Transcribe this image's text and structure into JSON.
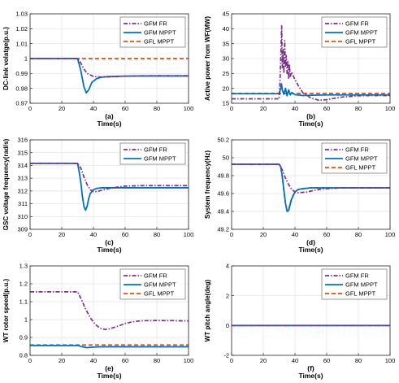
{
  "colors": {
    "gfm_fr": "#7E2F8E",
    "gfm_mppt": "#0072BD",
    "gfl_mppt": "#D95319",
    "grid": "#e3e3e3",
    "axis": "#262626"
  },
  "chart_data": [
    {
      "type": "line",
      "caption": "(a)",
      "xlabel": "Time(s)",
      "ylabel": "DC-link volatge(p.u.)",
      "xlim": [
        0,
        100
      ],
      "ylim": [
        0.97,
        1.03
      ],
      "xticks": [
        "0",
        "20",
        "40",
        "60",
        "80",
        "100"
      ],
      "yticks": [
        "0.97",
        "0.98",
        "0.99",
        "1",
        "1.01",
        "1.02",
        "1.03"
      ],
      "grid": true,
      "legend": "top-right",
      "series": [
        {
          "name": "GFM FR",
          "color": "#7E2F8E",
          "style": "dashdot",
          "x": [
            0,
            30,
            32,
            34,
            36,
            40,
            45,
            50,
            60,
            70,
            80,
            90,
            100
          ],
          "y": [
            1.0,
            1.0,
            0.997,
            0.993,
            0.99,
            0.988,
            0.9875,
            0.9877,
            0.9882,
            0.9884,
            0.9885,
            0.9885,
            0.9885
          ]
        },
        {
          "name": "GFM MPPT",
          "color": "#0072BD",
          "style": "solid",
          "x": [
            0,
            30,
            32,
            34,
            35.5,
            37,
            39,
            42,
            45,
            50,
            60,
            70,
            80,
            100
          ],
          "y": [
            1.0,
            1.0,
            0.992,
            0.981,
            0.977,
            0.979,
            0.984,
            0.9865,
            0.9875,
            0.988,
            0.9882,
            0.9883,
            0.9883,
            0.9883
          ]
        },
        {
          "name": "GFL MPPT",
          "color": "#D95319",
          "style": "dashed",
          "x": [
            0,
            100
          ],
          "y": [
            1.0,
            1.0
          ]
        }
      ]
    },
    {
      "type": "line",
      "caption": "(b)",
      "xlabel": "Time(s)",
      "ylabel": "Active power from WF(MW)",
      "xlim": [
        0,
        100
      ],
      "ylim": [
        15,
        45
      ],
      "xticks": [
        "0",
        "20",
        "40",
        "60",
        "80",
        "100"
      ],
      "yticks": [
        "15",
        "20",
        "25",
        "30",
        "35",
        "40",
        "45"
      ],
      "grid": true,
      "legend": "top-right",
      "series": [
        {
          "name": "GFM FR",
          "color": "#7E2F8E",
          "style": "dashdot",
          "x": [
            0,
            30,
            30.5,
            31,
            31.6,
            32,
            32.5,
            33,
            33.5,
            34,
            34.5,
            35,
            35.5,
            36,
            36.5,
            37,
            38,
            39,
            40,
            42,
            45,
            50,
            55,
            60,
            65,
            70,
            80,
            90,
            100
          ],
          "y": [
            16.5,
            16.5,
            22,
            30,
            41,
            27,
            33,
            25,
            36,
            27,
            31,
            25,
            29,
            23,
            28,
            24,
            25.5,
            24,
            23,
            21,
            18.5,
            16.8,
            16.0,
            16.2,
            16.7,
            17.1,
            17.5,
            17.6,
            17.6
          ]
        },
        {
          "name": "GFM MPPT",
          "color": "#0072BD",
          "style": "solid",
          "x": [
            0,
            30,
            31,
            31.5,
            32,
            33,
            34,
            35,
            36,
            37,
            38,
            40,
            45,
            50,
            60,
            70,
            100
          ],
          "y": [
            18.2,
            18.2,
            20,
            21.5,
            19.5,
            18,
            20,
            17.5,
            19.5,
            17.8,
            18.6,
            17.9,
            17.6,
            17.7,
            17.8,
            17.8,
            17.8
          ]
        },
        {
          "name": "GFL MPPT",
          "color": "#D95319",
          "style": "dashed",
          "x": [
            0,
            100
          ],
          "y": [
            18.3,
            18.3
          ]
        }
      ]
    },
    {
      "type": "line",
      "caption": "(c)",
      "xlabel": "Time(s)",
      "ylabel": "GSC voltage frequency(rad/s)",
      "xlim": [
        0,
        100
      ],
      "ylim": [
        309,
        316
      ],
      "xticks": [
        "0",
        "20",
        "40",
        "60",
        "80",
        "100"
      ],
      "yticks": [
        "309",
        "310",
        "311",
        "312",
        "313",
        "314",
        "315",
        "316"
      ],
      "grid": true,
      "legend": "top-right",
      "series": [
        {
          "name": "GFM FR",
          "color": "#7E2F8E",
          "style": "dashdot",
          "x": [
            0,
            30,
            32,
            34,
            36,
            38,
            40,
            42,
            45,
            50,
            55,
            60,
            70,
            80,
            90,
            100
          ],
          "y": [
            314.16,
            314.16,
            313.8,
            313.1,
            312.5,
            312.1,
            311.95,
            311.95,
            312.05,
            312.2,
            312.3,
            312.38,
            312.42,
            312.42,
            312.42,
            312.42
          ]
        },
        {
          "name": "GFM MPPT",
          "color": "#0072BD",
          "style": "solid",
          "x": [
            0,
            30,
            31,
            32,
            33,
            34,
            35,
            36,
            37,
            38,
            40,
            42,
            45,
            50,
            60,
            80,
            100
          ],
          "y": [
            314.16,
            314.16,
            313.5,
            312.7,
            311.6,
            310.8,
            310.5,
            310.8,
            311.4,
            311.8,
            312.1,
            312.2,
            312.25,
            312.25,
            312.25,
            312.25,
            312.25
          ]
        }
      ]
    },
    {
      "type": "line",
      "caption": "(d)",
      "xlabel": "Time(s)",
      "ylabel": "System frequency(Hz)",
      "xlim": [
        0,
        100
      ],
      "ylim": [
        49.2,
        50.3
      ],
      "xticks": [
        "0",
        "20",
        "40",
        "60",
        "80",
        "100"
      ],
      "yticks": [
        "49.2",
        "49.4",
        "49.6",
        "49.8",
        "50",
        "50.2"
      ],
      "grid": true,
      "legend": "top-right",
      "series": [
        {
          "name": "GFM FR",
          "color": "#7E2F8E",
          "style": "dashdot",
          "x": [
            0,
            30,
            32,
            34,
            36,
            38,
            40,
            42,
            45,
            48,
            50,
            55,
            60,
            70,
            80,
            100
          ],
          "y": [
            50.0,
            50.0,
            49.93,
            49.83,
            49.75,
            49.69,
            49.66,
            49.65,
            49.655,
            49.66,
            49.67,
            49.69,
            49.7,
            49.71,
            49.71,
            49.71
          ]
        },
        {
          "name": "GFM MPPT",
          "color": "#0072BD",
          "style": "solid",
          "x": [
            0,
            30,
            31,
            32,
            33,
            34,
            35,
            36,
            37,
            38,
            40,
            42,
            45,
            50,
            60,
            100
          ],
          "y": [
            50.0,
            50.0,
            49.97,
            49.85,
            49.68,
            49.52,
            49.42,
            49.43,
            49.51,
            49.58,
            49.66,
            49.69,
            49.7,
            49.71,
            49.71,
            49.71
          ]
        },
        {
          "name": "GFL MPPT",
          "color": "#D95319",
          "style": "dashed",
          "x": [
            0,
            30,
            31,
            32,
            33,
            34,
            35,
            36,
            37,
            38,
            40,
            42,
            45,
            50,
            60,
            100
          ],
          "y": [
            50.0,
            50.0,
            49.97,
            49.84,
            49.67,
            49.52,
            49.43,
            49.44,
            49.52,
            49.59,
            49.66,
            49.69,
            49.7,
            49.71,
            49.71,
            49.71
          ]
        }
      ]
    },
    {
      "type": "line",
      "caption": "(e)",
      "xlabel": "Time(s)",
      "ylabel": "WT rotor speed(p.u.)",
      "xlim": [
        0,
        100
      ],
      "ylim": [
        0.8,
        1.3
      ],
      "xticks": [
        "0",
        "20",
        "40",
        "60",
        "80",
        "100"
      ],
      "yticks": [
        "0.8",
        "0.9",
        "1",
        "1.1",
        "1.2",
        "1.3"
      ],
      "grid": true,
      "legend": "top-right",
      "series": [
        {
          "name": "GFM FR",
          "color": "#7E2F8E",
          "style": "dashdot",
          "x": [
            0,
            30,
            32,
            35,
            38,
            41,
            44,
            47,
            50,
            55,
            60,
            65,
            70,
            80,
            90,
            100
          ],
          "y": [
            1.155,
            1.155,
            1.12,
            1.06,
            1.01,
            0.975,
            0.952,
            0.945,
            0.948,
            0.962,
            0.978,
            0.988,
            0.993,
            0.995,
            0.994,
            0.992
          ]
        },
        {
          "name": "GFM MPPT",
          "color": "#0072BD",
          "style": "solid",
          "x": [
            0,
            30,
            33,
            36,
            40,
            45,
            50,
            100
          ],
          "y": [
            0.855,
            0.855,
            0.848,
            0.843,
            0.846,
            0.848,
            0.848,
            0.848
          ]
        },
        {
          "name": "GFL MPPT",
          "color": "#D95319",
          "style": "dashed",
          "x": [
            0,
            100
          ],
          "y": [
            0.858,
            0.858
          ]
        }
      ]
    },
    {
      "type": "line",
      "caption": "(f)",
      "xlabel": "Time(s)",
      "ylabel": "WT pitch angle(deg)",
      "xlim": [
        0,
        100
      ],
      "ylim": [
        -2,
        4
      ],
      "xticks": [
        "0",
        "20",
        "40",
        "60",
        "80",
        "100"
      ],
      "yticks": [
        "-2",
        "0",
        "2",
        "4"
      ],
      "grid": true,
      "legend": "top-right",
      "series": [
        {
          "name": "GFM FR",
          "color": "#7E2F8E",
          "style": "dashdot",
          "x": [
            0,
            100
          ],
          "y": [
            0,
            0
          ]
        },
        {
          "name": "GFM MPPT",
          "color": "#0072BD",
          "style": "solid",
          "x": [
            0,
            100
          ],
          "y": [
            0,
            0
          ]
        },
        {
          "name": "GFL MPPT",
          "color": "#D95319",
          "style": "dashed",
          "x": [
            0,
            100
          ],
          "y": [
            0,
            0
          ]
        }
      ]
    }
  ]
}
